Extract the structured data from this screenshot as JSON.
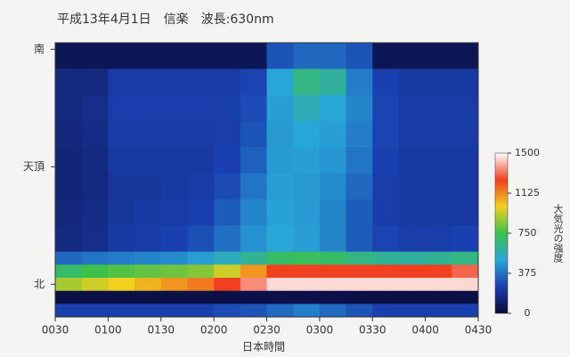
{
  "chart_data": {
    "type": "heatmap",
    "title": "平成13年4月1日　信楽　波長:630nm",
    "xlabel": "日本時間",
    "colorbar_label": "大気光の強度",
    "x_bins": [
      30,
      45,
      60,
      75,
      90,
      105,
      120,
      135,
      150,
      165,
      180,
      195,
      210,
      225,
      240,
      255,
      270
    ],
    "y_bins": [
      185,
      165,
      145,
      125,
      105,
      85,
      65,
      45,
      25,
      15,
      5,
      -5,
      -15,
      -25
    ],
    "values": [
      [
        60,
        60,
        60,
        60,
        60,
        60,
        60,
        60,
        300,
        350,
        350,
        300,
        60,
        60,
        60,
        60
      ],
      [
        150,
        150,
        230,
        230,
        230,
        230,
        230,
        260,
        500,
        650,
        600,
        400,
        250,
        220,
        220,
        220
      ],
      [
        150,
        170,
        240,
        240,
        240,
        240,
        240,
        280,
        480,
        560,
        500,
        420,
        260,
        230,
        230,
        230
      ],
      [
        140,
        160,
        230,
        230,
        230,
        230,
        240,
        300,
        470,
        500,
        480,
        400,
        260,
        230,
        230,
        230
      ],
      [
        130,
        150,
        220,
        220,
        220,
        220,
        250,
        330,
        470,
        480,
        460,
        380,
        250,
        220,
        220,
        220
      ],
      [
        130,
        150,
        210,
        210,
        220,
        230,
        280,
        380,
        480,
        470,
        440,
        350,
        240,
        220,
        220,
        220
      ],
      [
        140,
        160,
        210,
        220,
        230,
        250,
        320,
        420,
        490,
        470,
        420,
        320,
        240,
        220,
        220,
        220
      ],
      [
        150,
        170,
        220,
        230,
        250,
        290,
        370,
        450,
        500,
        480,
        420,
        320,
        260,
        240,
        240,
        250
      ],
      [
        350,
        380,
        400,
        420,
        440,
        480,
        550,
        620,
        700,
        720,
        700,
        650,
        620,
        600,
        620,
        650
      ],
      [
        700,
        750,
        780,
        800,
        820,
        850,
        950,
        1100,
        1250,
        1250,
        1250,
        1250,
        1250,
        1250,
        1250,
        1300
      ],
      [
        900,
        950,
        1000,
        1050,
        1100,
        1150,
        1250,
        1350,
        1450,
        1450,
        1450,
        1450,
        1450,
        1450,
        1450,
        1450
      ],
      [
        30,
        30,
        30,
        30,
        30,
        30,
        30,
        30,
        30,
        30,
        30,
        30,
        30,
        30,
        30,
        30
      ],
      [
        250,
        250,
        250,
        250,
        250,
        250,
        280,
        300,
        350,
        400,
        350,
        300,
        250,
        250,
        250,
        250
      ]
    ],
    "xlim": [
      30,
      270
    ],
    "xticks": [
      {
        "value": 30,
        "label": "0030"
      },
      {
        "value": 60,
        "label": "0100"
      },
      {
        "value": 90,
        "label": "0130"
      },
      {
        "value": 120,
        "label": "0200"
      },
      {
        "value": 150,
        "label": "0230"
      },
      {
        "value": 180,
        "label": "0300"
      },
      {
        "value": 210,
        "label": "0330"
      },
      {
        "value": 240,
        "label": "0400"
      },
      {
        "value": 270,
        "label": "0430"
      }
    ],
    "ylim": [
      -25,
      185
    ],
    "yticks": [
      {
        "value": 0,
        "label": "北"
      },
      {
        "value": 90,
        "label": "天頂"
      },
      {
        "value": 180,
        "label": "南"
      }
    ],
    "clim": [
      0,
      1500
    ],
    "cticks": [
      0,
      375,
      750,
      1125,
      1500
    ],
    "colorscale": [
      "#0a0a3a",
      "#1a3fb0",
      "#29a6d8",
      "#3cc04a",
      "#f0d020",
      "#f04020",
      "#ffffff"
    ]
  }
}
